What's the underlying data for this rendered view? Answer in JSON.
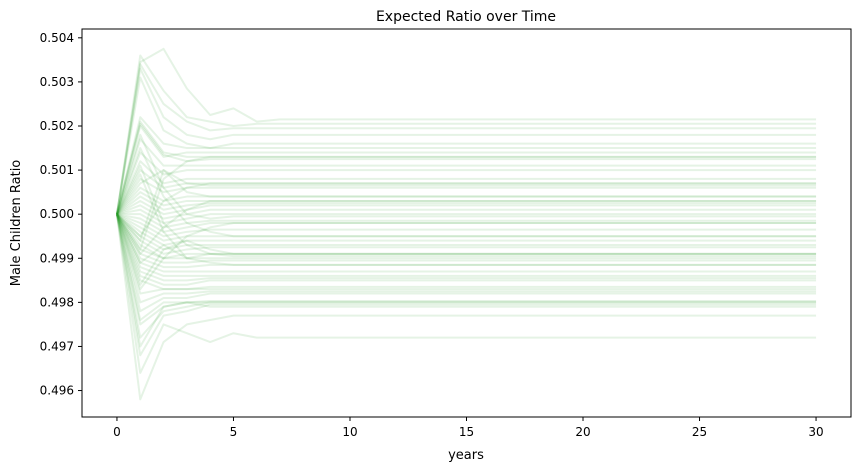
{
  "chart_data": {
    "type": "line",
    "title": "Expected Ratio over Time",
    "xlabel": "years",
    "ylabel": "Male Children Ratio",
    "xlim": [
      -1.5,
      31.5
    ],
    "ylim": [
      0.4954,
      0.5042
    ],
    "x_ticks": [
      0,
      5,
      10,
      15,
      20,
      25,
      30
    ],
    "x_tick_labels": [
      "0",
      "5",
      "10",
      "15",
      "20",
      "25",
      "30"
    ],
    "y_ticks": [
      0.496,
      0.497,
      0.498,
      0.499,
      0.5,
      0.501,
      0.502,
      0.503,
      0.504
    ],
    "y_tick_labels": [
      "0.496",
      "0.497",
      "0.498",
      "0.499",
      "0.500",
      "0.501",
      "0.502",
      "0.503",
      "0.504"
    ],
    "line_color": "#2ca02c",
    "line_opacity": 0.12,
    "grid": false,
    "legend": "none",
    "x": [
      0,
      1,
      2,
      3,
      4,
      5,
      6,
      7,
      8,
      9,
      10,
      11,
      12,
      13,
      14,
      15,
      16,
      17,
      18,
      19,
      20,
      21,
      22,
      23,
      24,
      25,
      26,
      27,
      28,
      29,
      30
    ],
    "series": [
      {
        "start": [
          0.5,
          0.50345,
          0.50375,
          0.50285,
          0.50225,
          0.5024,
          0.5021
        ],
        "final": 0.50215
      },
      {
        "start": [
          0.5,
          0.5036,
          0.5028,
          0.5022,
          0.5021,
          0.502,
          0.50205
        ],
        "final": 0.50205
      },
      {
        "start": [
          0.5,
          0.5034,
          0.5025,
          0.5021,
          0.5019,
          0.50195
        ],
        "final": 0.50195
      },
      {
        "start": [
          0.5,
          0.5033,
          0.5022,
          0.5018,
          0.5017
        ],
        "final": 0.5018
      },
      {
        "start": [
          0.5,
          0.5031,
          0.5019,
          0.5016,
          0.5015
        ],
        "final": 0.5016
      },
      {
        "start": [
          0.5,
          0.5022,
          0.5016,
          0.5015
        ],
        "final": 0.5015
      },
      {
        "start": [
          0.5,
          0.5021,
          0.5014,
          0.5013
        ],
        "final": 0.5013
      },
      {
        "start": [
          0.5,
          0.50205,
          0.50135,
          0.5012
        ],
        "final": 0.50125
      },
      {
        "start": [
          0.5,
          0.502,
          0.5013,
          0.5014
        ],
        "final": 0.5014
      },
      {
        "start": [
          0.5,
          0.5017,
          0.5011,
          0.5011
        ],
        "final": 0.5011
      },
      {
        "start": [
          0.5,
          0.5014,
          0.5009,
          0.501
        ],
        "final": 0.501
      },
      {
        "start": [
          0.5,
          0.5012,
          0.5007,
          0.5008
        ],
        "final": 0.5008
      },
      {
        "start": [
          0.5,
          0.501,
          0.5006,
          0.5007
        ],
        "final": 0.5007
      },
      {
        "start": [
          0.5,
          0.5008,
          0.5005,
          0.5006
        ],
        "final": 0.5006
      },
      {
        "start": [
          0.5,
          0.5007,
          0.501,
          0.5007
        ],
        "final": 0.50065
      },
      {
        "start": [
          0.5,
          0.5006,
          0.5003,
          0.5004
        ],
        "final": 0.5004
      },
      {
        "start": [
          0.5,
          0.5005,
          0.5002,
          0.5003
        ],
        "final": 0.5003
      },
      {
        "start": [
          0.5,
          0.5004,
          0.5001,
          0.5002
        ],
        "final": 0.50025
      },
      {
        "start": [
          0.5,
          0.5003,
          0.5,
          0.5001
        ],
        "final": 0.5002
      },
      {
        "start": [
          0.5,
          0.5002,
          0.4999,
          0.5
        ],
        "final": 0.5001
      },
      {
        "start": [
          0.5,
          0.5001,
          0.4998,
          0.4999
        ],
        "final": 0.5
      },
      {
        "start": [
          0.5,
          0.5,
          0.4997,
          0.4998
        ],
        "final": 0.49985
      },
      {
        "start": [
          0.5,
          0.4999,
          0.4996,
          0.4997
        ],
        "final": 0.4998
      },
      {
        "start": [
          0.5,
          0.4998,
          0.4995,
          0.4996
        ],
        "final": 0.49965
      },
      {
        "start": [
          0.5,
          0.4997,
          0.4994,
          0.4995
        ],
        "final": 0.4995
      },
      {
        "start": [
          0.5,
          0.4996,
          0.4993,
          0.4994
        ],
        "final": 0.4994
      },
      {
        "start": [
          0.5,
          0.4995,
          0.4992,
          0.4993
        ],
        "final": 0.4993
      },
      {
        "start": [
          0.5,
          0.4994,
          0.4991,
          0.4992
        ],
        "final": 0.49925
      },
      {
        "start": [
          0.5,
          0.4993,
          0.499,
          0.4991
        ],
        "final": 0.4991
      },
      {
        "start": [
          0.5,
          0.4992,
          0.499,
          0.499
        ],
        "final": 0.499
      },
      {
        "start": [
          0.5,
          0.4991,
          0.4989,
          0.4989
        ],
        "final": 0.49895
      },
      {
        "start": [
          0.5,
          0.499,
          0.4988,
          0.4988
        ],
        "final": 0.49885
      },
      {
        "start": [
          0.5,
          0.4989,
          0.4987,
          0.4987
        ],
        "final": 0.4987
      },
      {
        "start": [
          0.5,
          0.4988,
          0.4986,
          0.4986
        ],
        "final": 0.4986
      },
      {
        "start": [
          0.5,
          0.4987,
          0.4985,
          0.4985
        ],
        "final": 0.49855
      },
      {
        "start": [
          0.5,
          0.4986,
          0.4984,
          0.4984
        ],
        "final": 0.4985
      },
      {
        "start": [
          0.5,
          0.4985,
          0.4983,
          0.4983
        ],
        "final": 0.49835
      },
      {
        "start": [
          0.5,
          0.4982,
          0.4983,
          0.4983
        ],
        "final": 0.4983
      },
      {
        "start": [
          0.5,
          0.498,
          0.4982,
          0.4982
        ],
        "final": 0.49825
      },
      {
        "start": [
          0.5,
          0.4978,
          0.4981,
          0.4981
        ],
        "final": 0.4982
      },
      {
        "start": [
          0.5,
          0.4976,
          0.498,
          0.498
        ],
        "final": 0.498
      },
      {
        "start": [
          0.5,
          0.4975,
          0.4979,
          0.498
        ],
        "final": 0.49803
      },
      {
        "start": [
          0.5,
          0.4972,
          0.4978,
          0.4979
        ],
        "final": 0.498
      },
      {
        "start": [
          0.5,
          0.4968,
          0.4977,
          0.4978
        ],
        "final": 0.49795
      },
      {
        "start": [
          0.5,
          0.4964,
          0.4975,
          0.4973,
          0.4971,
          0.4973,
          0.4972
        ],
        "final": 0.4972
      },
      {
        "start": [
          0.5,
          0.4958,
          0.4971,
          0.4975,
          0.4976
        ],
        "final": 0.4977
      },
      {
        "start": [
          0.5,
          0.497,
          0.4979,
          0.498,
          0.4979
        ],
        "final": 0.4979
      },
      {
        "start": [
          0.5,
          0.4983,
          0.499,
          0.4995,
          0.4997
        ],
        "final": 0.4998
      },
      {
        "start": [
          0.5,
          0.4984,
          0.4992,
          0.4994,
          0.4992
        ],
        "final": 0.4991
      },
      {
        "start": [
          0.5,
          0.4989,
          0.4993,
          0.499,
          0.4991
        ],
        "final": 0.4991
      },
      {
        "start": [
          0.5,
          0.4991,
          0.4997,
          0.5001,
          0.5003
        ],
        "final": 0.5003
      },
      {
        "start": [
          0.5,
          0.4995,
          0.5003,
          0.5006,
          0.5007
        ],
        "final": 0.5007
      },
      {
        "start": [
          0.5,
          0.5015,
          0.5004,
          0.4998,
          0.4996
        ],
        "final": 0.4995
      },
      {
        "start": [
          0.5,
          0.5018,
          0.5006,
          0.5,
          0.4999
        ],
        "final": 0.49995
      },
      {
        "start": [
          0.5,
          0.5011,
          0.4998,
          0.4993,
          0.4991
        ],
        "final": 0.49905
      },
      {
        "start": [
          0.5,
          0.5009,
          0.4996,
          0.499,
          0.4989
        ],
        "final": 0.49885
      },
      {
        "start": [
          0.5,
          0.4992,
          0.5008,
          0.5012,
          0.5013
        ],
        "final": 0.5013
      },
      {
        "start": [
          0.5,
          0.4994,
          0.501,
          0.5005,
          0.5004
        ],
        "final": 0.5004
      }
    ]
  }
}
